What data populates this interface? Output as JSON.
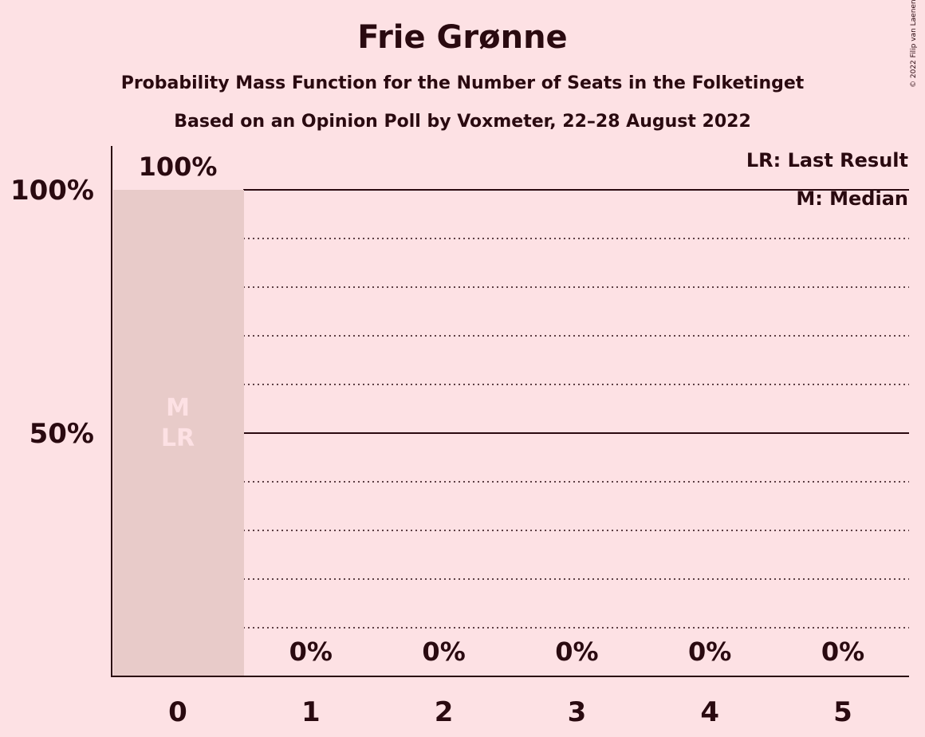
{
  "title": "Frie Grønne",
  "subtitle": "Probability Mass Function for the Number of Seats in the Folketinget",
  "source_line": "Based on an Opinion Poll by Voxmeter, 22–28 August 2022",
  "copyright": "© 2022 Filip van Laenen",
  "legend": {
    "last_result": "LR: Last Result",
    "median": "M: Median"
  },
  "colors": {
    "background": "#fde1e4",
    "bar": "#e8cbc9",
    "text": "#2a0a10",
    "marker_text": "#fde1e4"
  },
  "chart_data": {
    "type": "bar",
    "categories": [
      "0",
      "1",
      "2",
      "3",
      "4",
      "5"
    ],
    "values": [
      100,
      0,
      0,
      0,
      0,
      0
    ],
    "value_labels": [
      "100%",
      "0%",
      "0%",
      "0%",
      "0%",
      "0%"
    ],
    "y_ticks": [
      {
        "value": 50,
        "label": "50%"
      },
      {
        "value": 100,
        "label": "100%"
      }
    ],
    "ylim": [
      0,
      100
    ],
    "solid_gridlines": [
      50,
      100
    ],
    "dotted_gridlines": [
      10,
      20,
      30,
      40,
      60,
      70,
      80,
      90
    ],
    "bar_markers": [
      {
        "category": "0",
        "labels": [
          "M",
          "LR"
        ]
      }
    ],
    "legend_placement": "top-right",
    "xlabel": "",
    "ylabel": ""
  }
}
